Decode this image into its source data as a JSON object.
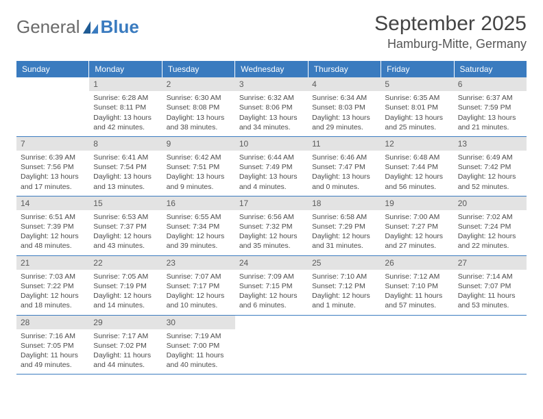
{
  "logo": {
    "text1": "General",
    "text2": "Blue"
  },
  "title": "September 2025",
  "location": "Hamburg-Mitte, Germany",
  "colors": {
    "header_bg": "#3a7bbf",
    "header_text": "#ffffff",
    "daynum_bg": "#e3e3e3",
    "daynum_text": "#5a5a5a",
    "border": "#3a7bbf",
    "body_text": "#4a4a4a"
  },
  "daynames": [
    "Sunday",
    "Monday",
    "Tuesday",
    "Wednesday",
    "Thursday",
    "Friday",
    "Saturday"
  ],
  "weeks": [
    [
      {
        "n": "",
        "sunrise": "",
        "sunset": "",
        "daylight": ""
      },
      {
        "n": "1",
        "sunrise": "Sunrise: 6:28 AM",
        "sunset": "Sunset: 8:11 PM",
        "daylight": "Daylight: 13 hours and 42 minutes."
      },
      {
        "n": "2",
        "sunrise": "Sunrise: 6:30 AM",
        "sunset": "Sunset: 8:08 PM",
        "daylight": "Daylight: 13 hours and 38 minutes."
      },
      {
        "n": "3",
        "sunrise": "Sunrise: 6:32 AM",
        "sunset": "Sunset: 8:06 PM",
        "daylight": "Daylight: 13 hours and 34 minutes."
      },
      {
        "n": "4",
        "sunrise": "Sunrise: 6:34 AM",
        "sunset": "Sunset: 8:03 PM",
        "daylight": "Daylight: 13 hours and 29 minutes."
      },
      {
        "n": "5",
        "sunrise": "Sunrise: 6:35 AM",
        "sunset": "Sunset: 8:01 PM",
        "daylight": "Daylight: 13 hours and 25 minutes."
      },
      {
        "n": "6",
        "sunrise": "Sunrise: 6:37 AM",
        "sunset": "Sunset: 7:59 PM",
        "daylight": "Daylight: 13 hours and 21 minutes."
      }
    ],
    [
      {
        "n": "7",
        "sunrise": "Sunrise: 6:39 AM",
        "sunset": "Sunset: 7:56 PM",
        "daylight": "Daylight: 13 hours and 17 minutes."
      },
      {
        "n": "8",
        "sunrise": "Sunrise: 6:41 AM",
        "sunset": "Sunset: 7:54 PM",
        "daylight": "Daylight: 13 hours and 13 minutes."
      },
      {
        "n": "9",
        "sunrise": "Sunrise: 6:42 AM",
        "sunset": "Sunset: 7:51 PM",
        "daylight": "Daylight: 13 hours and 9 minutes."
      },
      {
        "n": "10",
        "sunrise": "Sunrise: 6:44 AM",
        "sunset": "Sunset: 7:49 PM",
        "daylight": "Daylight: 13 hours and 4 minutes."
      },
      {
        "n": "11",
        "sunrise": "Sunrise: 6:46 AM",
        "sunset": "Sunset: 7:47 PM",
        "daylight": "Daylight: 13 hours and 0 minutes."
      },
      {
        "n": "12",
        "sunrise": "Sunrise: 6:48 AM",
        "sunset": "Sunset: 7:44 PM",
        "daylight": "Daylight: 12 hours and 56 minutes."
      },
      {
        "n": "13",
        "sunrise": "Sunrise: 6:49 AM",
        "sunset": "Sunset: 7:42 PM",
        "daylight": "Daylight: 12 hours and 52 minutes."
      }
    ],
    [
      {
        "n": "14",
        "sunrise": "Sunrise: 6:51 AM",
        "sunset": "Sunset: 7:39 PM",
        "daylight": "Daylight: 12 hours and 48 minutes."
      },
      {
        "n": "15",
        "sunrise": "Sunrise: 6:53 AM",
        "sunset": "Sunset: 7:37 PM",
        "daylight": "Daylight: 12 hours and 43 minutes."
      },
      {
        "n": "16",
        "sunrise": "Sunrise: 6:55 AM",
        "sunset": "Sunset: 7:34 PM",
        "daylight": "Daylight: 12 hours and 39 minutes."
      },
      {
        "n": "17",
        "sunrise": "Sunrise: 6:56 AM",
        "sunset": "Sunset: 7:32 PM",
        "daylight": "Daylight: 12 hours and 35 minutes."
      },
      {
        "n": "18",
        "sunrise": "Sunrise: 6:58 AM",
        "sunset": "Sunset: 7:29 PM",
        "daylight": "Daylight: 12 hours and 31 minutes."
      },
      {
        "n": "19",
        "sunrise": "Sunrise: 7:00 AM",
        "sunset": "Sunset: 7:27 PM",
        "daylight": "Daylight: 12 hours and 27 minutes."
      },
      {
        "n": "20",
        "sunrise": "Sunrise: 7:02 AM",
        "sunset": "Sunset: 7:24 PM",
        "daylight": "Daylight: 12 hours and 22 minutes."
      }
    ],
    [
      {
        "n": "21",
        "sunrise": "Sunrise: 7:03 AM",
        "sunset": "Sunset: 7:22 PM",
        "daylight": "Daylight: 12 hours and 18 minutes."
      },
      {
        "n": "22",
        "sunrise": "Sunrise: 7:05 AM",
        "sunset": "Sunset: 7:19 PM",
        "daylight": "Daylight: 12 hours and 14 minutes."
      },
      {
        "n": "23",
        "sunrise": "Sunrise: 7:07 AM",
        "sunset": "Sunset: 7:17 PM",
        "daylight": "Daylight: 12 hours and 10 minutes."
      },
      {
        "n": "24",
        "sunrise": "Sunrise: 7:09 AM",
        "sunset": "Sunset: 7:15 PM",
        "daylight": "Daylight: 12 hours and 6 minutes."
      },
      {
        "n": "25",
        "sunrise": "Sunrise: 7:10 AM",
        "sunset": "Sunset: 7:12 PM",
        "daylight": "Daylight: 12 hours and 1 minute."
      },
      {
        "n": "26",
        "sunrise": "Sunrise: 7:12 AM",
        "sunset": "Sunset: 7:10 PM",
        "daylight": "Daylight: 11 hours and 57 minutes."
      },
      {
        "n": "27",
        "sunrise": "Sunrise: 7:14 AM",
        "sunset": "Sunset: 7:07 PM",
        "daylight": "Daylight: 11 hours and 53 minutes."
      }
    ],
    [
      {
        "n": "28",
        "sunrise": "Sunrise: 7:16 AM",
        "sunset": "Sunset: 7:05 PM",
        "daylight": "Daylight: 11 hours and 49 minutes."
      },
      {
        "n": "29",
        "sunrise": "Sunrise: 7:17 AM",
        "sunset": "Sunset: 7:02 PM",
        "daylight": "Daylight: 11 hours and 44 minutes."
      },
      {
        "n": "30",
        "sunrise": "Sunrise: 7:19 AM",
        "sunset": "Sunset: 7:00 PM",
        "daylight": "Daylight: 11 hours and 40 minutes."
      },
      {
        "n": "",
        "sunrise": "",
        "sunset": "",
        "daylight": ""
      },
      {
        "n": "",
        "sunrise": "",
        "sunset": "",
        "daylight": ""
      },
      {
        "n": "",
        "sunrise": "",
        "sunset": "",
        "daylight": ""
      },
      {
        "n": "",
        "sunrise": "",
        "sunset": "",
        "daylight": ""
      }
    ]
  ]
}
